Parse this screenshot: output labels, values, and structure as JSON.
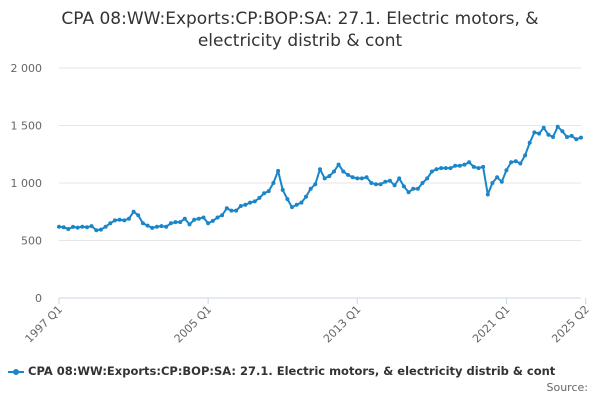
{
  "chart_data": {
    "type": "line",
    "title_lines": [
      "CPA 08:WW:Exports:CP:BOP:SA: 27.1. Electric motors, &",
      "electricity distrib & cont"
    ],
    "xlabel": "",
    "ylabel": "",
    "x_range": [
      "1997 Q1",
      "2025 Q2"
    ],
    "ylim": [
      0,
      2000
    ],
    "y_ticks": [
      0,
      500,
      1000,
      1500,
      2000
    ],
    "y_tick_labels": [
      "0",
      "500",
      "1 000",
      "1 500",
      "2 000"
    ],
    "x_tick_labels": [
      "1997 Q1",
      "2005 Q1",
      "2013 Q1",
      "2021 Q1",
      "2025 Q2"
    ],
    "grid": "horizontal",
    "legend_position": "bottom",
    "series": [
      {
        "name": "CPA 08:WW:Exports:CP:BOP:SA: 27.1. Electric motors, & electricity distrib & cont",
        "color": "#1a85c8",
        "values": [
          620,
          615,
          600,
          618,
          612,
          620,
          615,
          625,
          590,
          595,
          620,
          650,
          675,
          680,
          675,
          690,
          750,
          720,
          650,
          630,
          610,
          620,
          625,
          620,
          650,
          660,
          660,
          690,
          640,
          680,
          690,
          700,
          650,
          670,
          700,
          720,
          780,
          760,
          760,
          800,
          810,
          830,
          840,
          870,
          910,
          930,
          1000,
          1105,
          940,
          860,
          790,
          810,
          830,
          880,
          950,
          990,
          1120,
          1040,
          1060,
          1100,
          1160,
          1100,
          1070,
          1050,
          1040,
          1040,
          1050,
          1000,
          990,
          990,
          1010,
          1020,
          980,
          1040,
          970,
          920,
          950,
          950,
          1000,
          1040,
          1100,
          1120,
          1130,
          1130,
          1130,
          1150,
          1150,
          1160,
          1180,
          1140,
          1130,
          1140,
          900,
          1000,
          1050,
          1010,
          1110,
          1180,
          1190,
          1170,
          1240,
          1350,
          1440,
          1430,
          1480,
          1420,
          1400,
          1490,
          1450,
          1400,
          1410,
          1380,
          1395
        ]
      }
    ]
  },
  "legend": {
    "label": "CPA 08:WW:Exports:CP:BOP:SA: 27.1. Electric motors, & electricity distrib & cont"
  },
  "source": {
    "label": "Source:"
  }
}
